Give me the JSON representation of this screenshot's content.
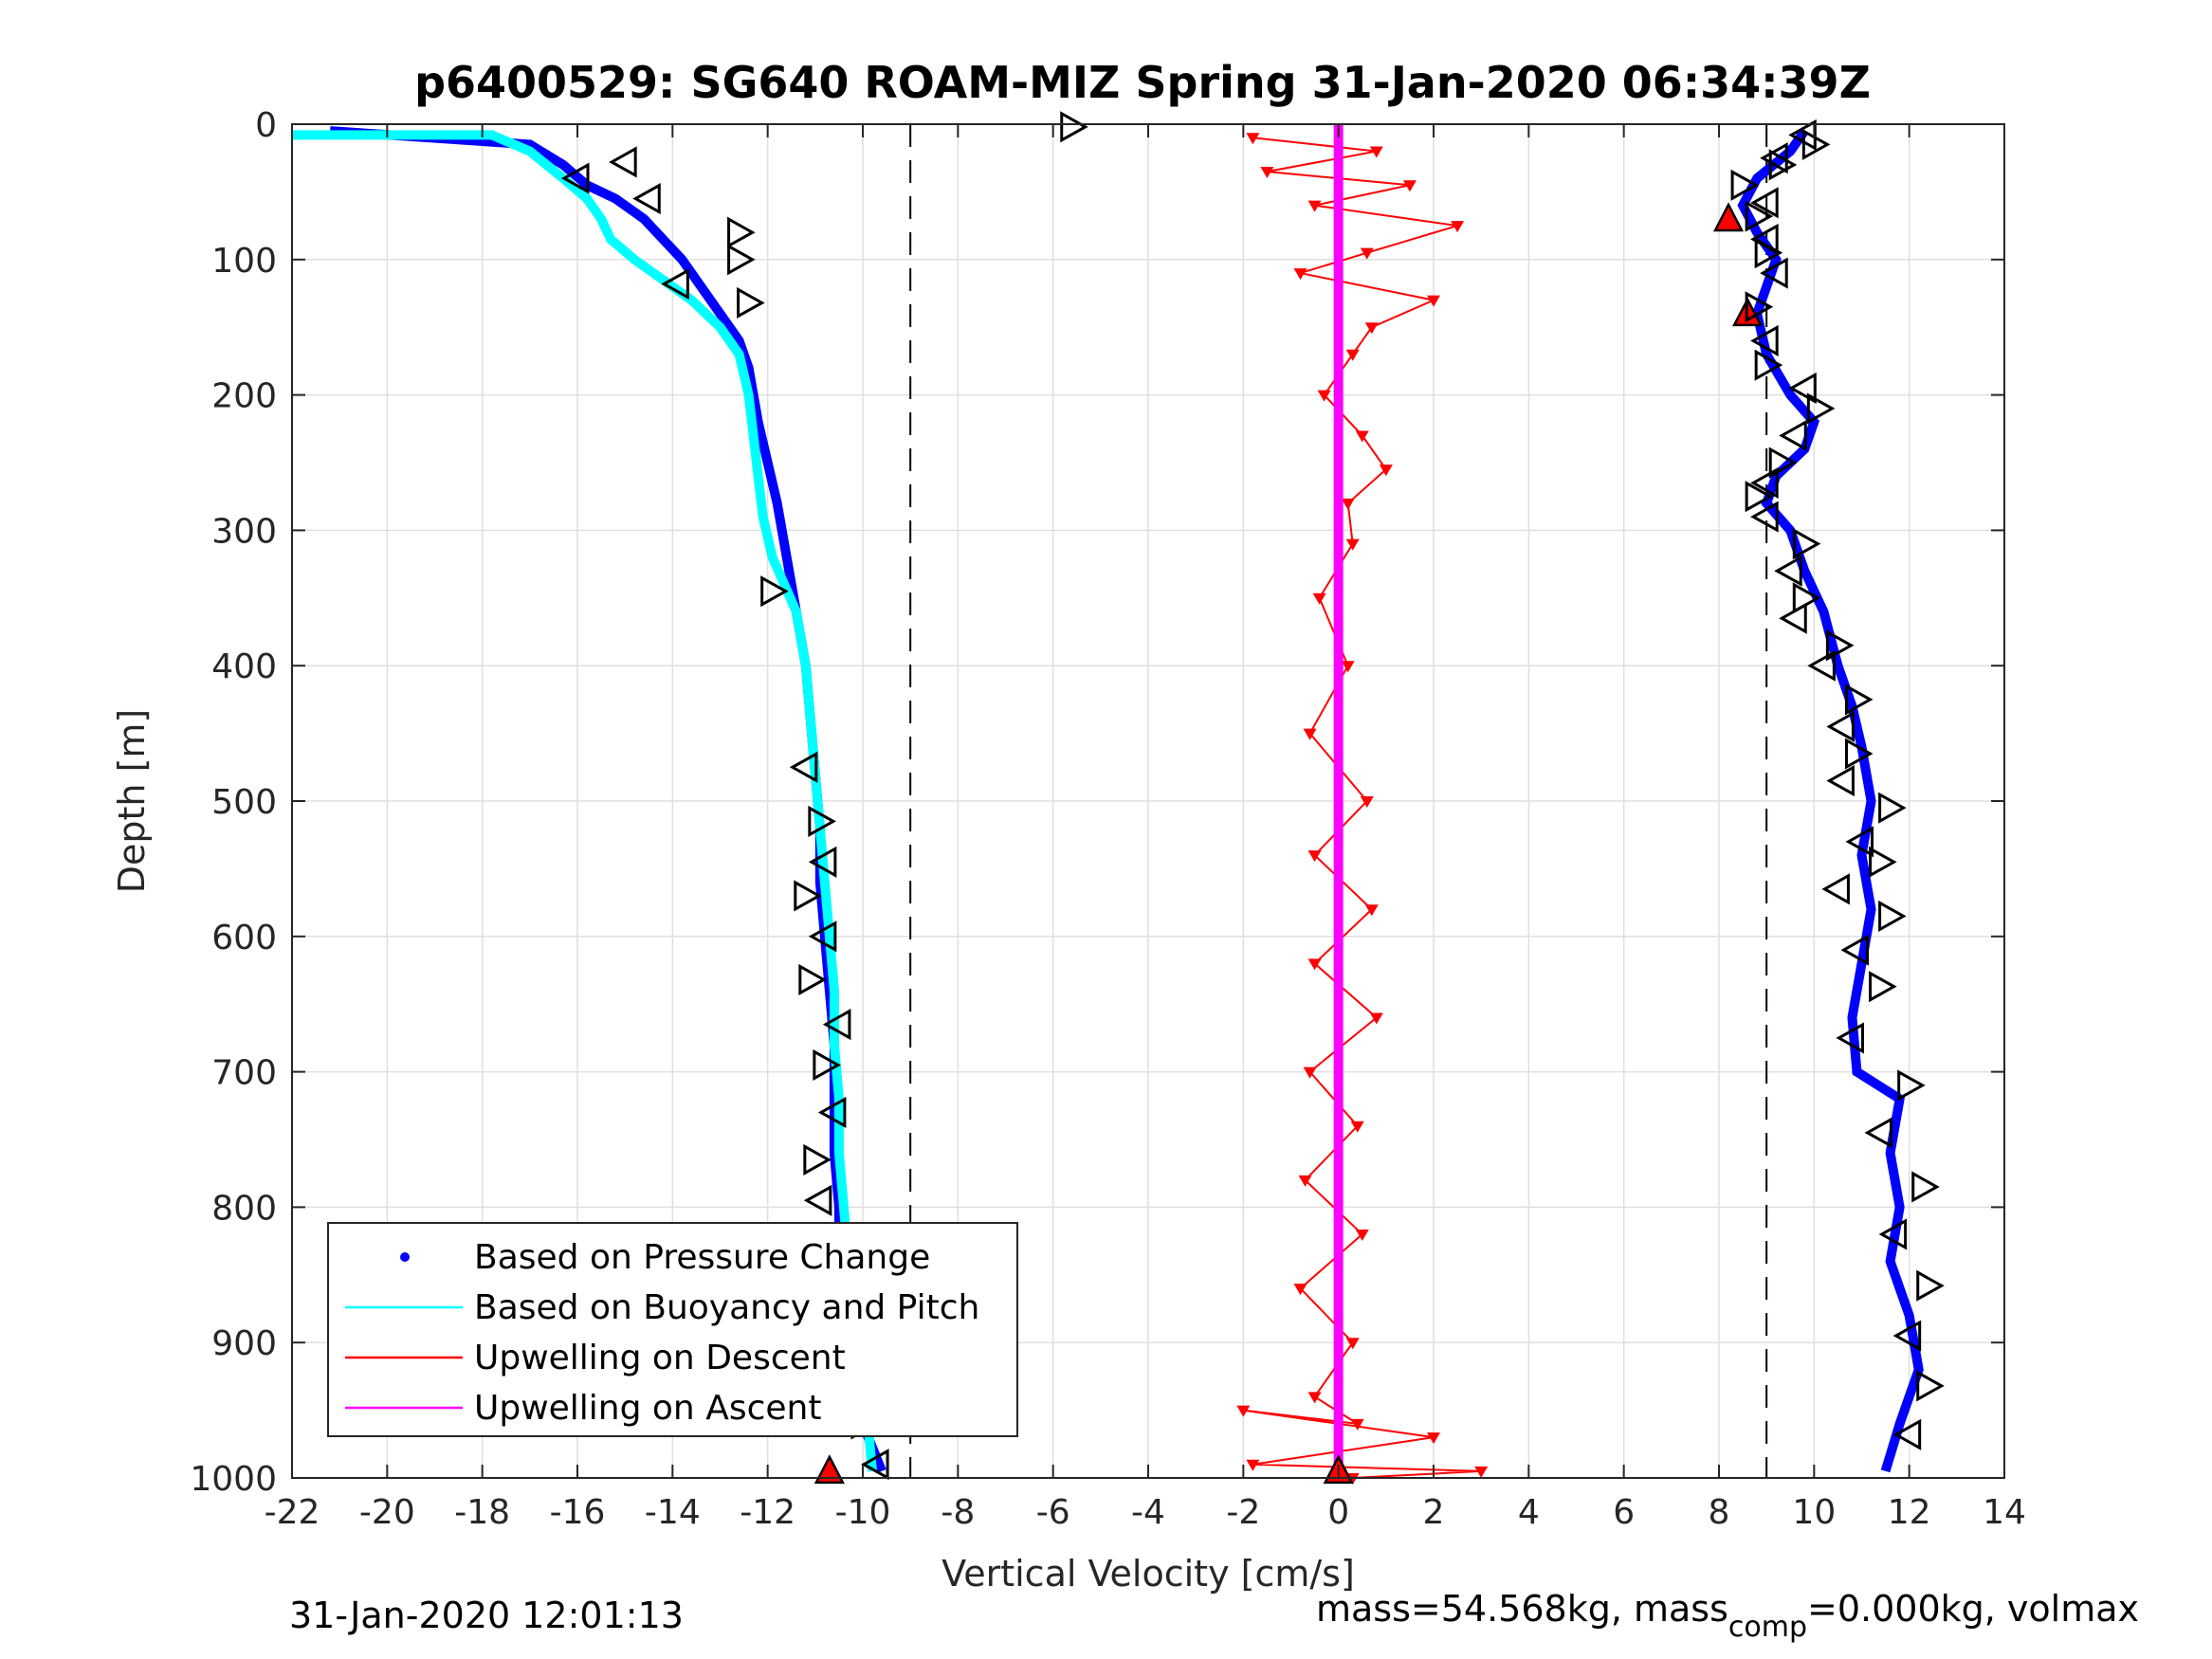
{
  "chart_data": {
    "type": "scatter",
    "title": "p6400529: SG640 ROAM-MIZ Spring 31-Jan-2020 06:34:39Z",
    "xlabel": "Vertical Velocity [cm/s]",
    "ylabel": "Depth [m]",
    "xlim": [
      -22,
      14
    ],
    "ylim": [
      1000,
      0
    ],
    "y_reversed": true,
    "grid": true,
    "xticks": [
      "-22",
      "-20",
      "-18",
      "-16",
      "-14",
      "-12",
      "-10",
      "-8",
      "-6",
      "-4",
      "-2",
      "0",
      "2",
      "4",
      "6",
      "8",
      "10",
      "12",
      "14"
    ],
    "yticks": [
      "0",
      "100",
      "200",
      "300",
      "400",
      "500",
      "600",
      "700",
      "800",
      "900",
      "1000"
    ],
    "reference_lines": [
      -9,
      9
    ],
    "legend": {
      "placement": "bottom-left",
      "entries": [
        {
          "label": "Based on Pressure Change",
          "color": "#0000ff",
          "marker": "dot"
        },
        {
          "label": "Based on Buoyancy and Pitch",
          "color": "#00ffff",
          "marker": "line"
        },
        {
          "label": "Upwelling on Descent",
          "color": "#ff0000",
          "marker": "line"
        },
        {
          "label": "Upwelling on Ascent",
          "color": "#ff00ff",
          "marker": "line"
        }
      ]
    },
    "series": [
      {
        "name": "Based on Pressure Change (descent)",
        "color": "#0000ff",
        "x": [
          -21.2,
          -17,
          -16.3,
          -15.8,
          -15.2,
          -14.6,
          -14.2,
          -13.8,
          -13.4,
          -13.0,
          -12.6,
          -12.4,
          -12.3,
          -12.2,
          -12.0,
          -11.8,
          -11.6,
          -11.4,
          -11.2,
          -11.1,
          -11.0,
          -10.9,
          -10.9,
          -10.8,
          -10.7,
          -10.6,
          -10.6,
          -10.6,
          -10.5,
          -10.5,
          -10.4,
          -10.2,
          -10.0,
          -9.6
        ],
        "y": [
          5,
          15,
          30,
          45,
          55,
          70,
          85,
          100,
          120,
          140,
          160,
          180,
          200,
          220,
          250,
          280,
          320,
          360,
          400,
          440,
          480,
          520,
          560,
          600,
          640,
          680,
          720,
          760,
          800,
          840,
          880,
          920,
          960,
          995
        ]
      },
      {
        "name": "Based on Pressure Change (ascent)",
        "color": "#0000ff",
        "x": [
          9.8,
          9.5,
          8.8,
          8.5,
          8.8,
          9.2,
          9.0,
          8.8,
          9.0,
          9.5,
          10.0,
          9.8,
          9.2,
          9.0,
          9.5,
          9.8,
          10.2,
          10.5,
          10.8,
          11.0,
          11.2,
          11.0,
          11.2,
          11.0,
          10.8,
          10.9,
          11.8,
          11.6,
          11.8,
          11.6,
          12.0,
          12.2,
          11.8,
          11.5
        ],
        "y": [
          5,
          20,
          40,
          60,
          80,
          100,
          120,
          140,
          170,
          200,
          220,
          240,
          260,
          280,
          300,
          330,
          360,
          400,
          430,
          460,
          500,
          540,
          580,
          620,
          660,
          700,
          720,
          760,
          800,
          840,
          880,
          920,
          960,
          995
        ]
      },
      {
        "name": "Based on Buoyancy and Pitch",
        "color": "#00ffff",
        "x": [
          -22,
          -17.8,
          -17.0,
          -16.3,
          -15.8,
          -15.5,
          -15.3,
          -14.8,
          -14.2,
          -13.6,
          -13.0,
          -12.6,
          -12.4,
          -12.3,
          -12.2,
          -12.1,
          -11.9,
          -11.4,
          -11.2,
          -11.1,
          -11.0,
          -10.9,
          -10.8,
          -10.7,
          -10.6,
          -10.6,
          -10.5,
          -10.5,
          -10.4,
          -10.3,
          -10.2,
          -10.0,
          -9.8
        ],
        "y": [
          8,
          8,
          20,
          40,
          55,
          70,
          85,
          100,
          115,
          130,
          150,
          170,
          200,
          230,
          260,
          290,
          320,
          360,
          400,
          440,
          480,
          520,
          560,
          600,
          640,
          680,
          720,
          760,
          800,
          840,
          880,
          920,
          995
        ]
      },
      {
        "name": "Upwelling on Descent",
        "color": "#ff0000",
        "x": [
          -1.8,
          0.8,
          -1.5,
          1.5,
          -0.5,
          2.5,
          0.6,
          -0.8,
          2.0,
          0.7,
          0.3,
          -0.3,
          0.5,
          1.0,
          0.2,
          0.3,
          -0.4,
          0.2,
          -0.6,
          0.6,
          -0.5,
          0.7,
          -0.5,
          0.8,
          -0.6,
          0.4,
          -0.7,
          0.5,
          -0.8,
          0.3,
          -0.5,
          0.4,
          -2.0,
          2.0,
          -1.8,
          3.0,
          0.3
        ],
        "y": [
          10,
          20,
          35,
          45,
          60,
          75,
          95,
          110,
          130,
          150,
          170,
          200,
          230,
          255,
          280,
          310,
          350,
          400,
          450,
          500,
          540,
          580,
          620,
          660,
          700,
          740,
          780,
          820,
          860,
          900,
          940,
          960,
          950,
          970,
          990,
          995,
          1000
        ]
      },
      {
        "name": "Upwelling on Ascent",
        "color": "#ff00ff",
        "x": [
          0,
          0,
          0
        ],
        "y": [
          0,
          500,
          1000
        ]
      }
    ],
    "markers": [
      {
        "kind": "triangle-up-red",
        "x": -10.7,
        "y": 995
      },
      {
        "kind": "triangle-up-red",
        "x": 0.0,
        "y": 995
      },
      {
        "kind": "triangle-up-red",
        "x": 8.2,
        "y": 70
      },
      {
        "kind": "triangle-up-red",
        "x": 8.6,
        "y": 140
      },
      {
        "kind": "triangle-right-open",
        "x": -5.6,
        "y": 2
      },
      {
        "kind": "triangle-left-open",
        "x": -16.0,
        "y": 40
      },
      {
        "kind": "triangle-left-open",
        "x": -15.0,
        "y": 28
      },
      {
        "kind": "triangle-left-open",
        "x": -14.5,
        "y": 55
      },
      {
        "kind": "triangle-right-open",
        "x": -12.6,
        "y": 80
      },
      {
        "kind": "triangle-right-open",
        "x": -12.6,
        "y": 100
      },
      {
        "kind": "triangle-left-open",
        "x": -13.9,
        "y": 118
      },
      {
        "kind": "triangle-right-open",
        "x": -12.4,
        "y": 132
      },
      {
        "kind": "triangle-right-open",
        "x": -11.9,
        "y": 345
      },
      {
        "kind": "triangle-left-open",
        "x": -11.2,
        "y": 475
      },
      {
        "kind": "triangle-right-open",
        "x": -10.9,
        "y": 515
      },
      {
        "kind": "triangle-left-open",
        "x": -10.8,
        "y": 545
      },
      {
        "kind": "triangle-right-open",
        "x": -11.2,
        "y": 570
      },
      {
        "kind": "triangle-left-open",
        "x": -10.8,
        "y": 600
      },
      {
        "kind": "triangle-right-open",
        "x": -11.1,
        "y": 632
      },
      {
        "kind": "triangle-left-open",
        "x": -10.5,
        "y": 665
      },
      {
        "kind": "triangle-right-open",
        "x": -10.8,
        "y": 695
      },
      {
        "kind": "triangle-left-open",
        "x": -10.6,
        "y": 730
      },
      {
        "kind": "triangle-right-open",
        "x": -11.0,
        "y": 765
      },
      {
        "kind": "triangle-left-open",
        "x": -10.9,
        "y": 795
      },
      {
        "kind": "triangle-right-open",
        "x": -11.1,
        "y": 830
      },
      {
        "kind": "triangle-left-open",
        "x": -10.4,
        "y": 860
      },
      {
        "kind": "triangle-right-open",
        "x": -10.8,
        "y": 895
      },
      {
        "kind": "triangle-left-open",
        "x": -10.5,
        "y": 925
      },
      {
        "kind": "triangle-right-open",
        "x": -10.0,
        "y": 960
      },
      {
        "kind": "triangle-left-open",
        "x": -9.7,
        "y": 990
      },
      {
        "kind": "triangle-left-open",
        "x": 9.8,
        "y": 8
      },
      {
        "kind": "triangle-right-open",
        "x": 10.0,
        "y": 15
      },
      {
        "kind": "triangle-left-open",
        "x": 9.2,
        "y": 25
      },
      {
        "kind": "triangle-right-open",
        "x": 9.3,
        "y": 30
      },
      {
        "kind": "triangle-right-open",
        "x": 8.5,
        "y": 45
      },
      {
        "kind": "triangle-left-open",
        "x": 9.0,
        "y": 58
      },
      {
        "kind": "triangle-right-open",
        "x": 8.8,
        "y": 68
      },
      {
        "kind": "triangle-left-open",
        "x": 9.0,
        "y": 85
      },
      {
        "kind": "triangle-right-open",
        "x": 9.0,
        "y": 95
      },
      {
        "kind": "triangle-left-open",
        "x": 9.2,
        "y": 110
      },
      {
        "kind": "triangle-right-open",
        "x": 8.8,
        "y": 135
      },
      {
        "kind": "triangle-left-open",
        "x": 9.0,
        "y": 160
      },
      {
        "kind": "triangle-right-open",
        "x": 9.0,
        "y": 178
      },
      {
        "kind": "triangle-left-open",
        "x": 9.8,
        "y": 195
      },
      {
        "kind": "triangle-right-open",
        "x": 10.1,
        "y": 210
      },
      {
        "kind": "triangle-left-open",
        "x": 9.6,
        "y": 230
      },
      {
        "kind": "triangle-right-open",
        "x": 9.3,
        "y": 250
      },
      {
        "kind": "triangle-left-open",
        "x": 9.0,
        "y": 265
      },
      {
        "kind": "triangle-right-open",
        "x": 8.8,
        "y": 275
      },
      {
        "kind": "triangle-left-open",
        "x": 9.0,
        "y": 290
      },
      {
        "kind": "triangle-right-open",
        "x": 9.8,
        "y": 310
      },
      {
        "kind": "triangle-left-open",
        "x": 9.5,
        "y": 330
      },
      {
        "kind": "triangle-right-open",
        "x": 9.8,
        "y": 350
      },
      {
        "kind": "triangle-left-open",
        "x": 9.6,
        "y": 365
      },
      {
        "kind": "triangle-right-open",
        "x": 10.5,
        "y": 385
      },
      {
        "kind": "triangle-left-open",
        "x": 10.2,
        "y": 400
      },
      {
        "kind": "triangle-right-open",
        "x": 10.9,
        "y": 425
      },
      {
        "kind": "triangle-left-open",
        "x": 10.6,
        "y": 445
      },
      {
        "kind": "triangle-right-open",
        "x": 10.9,
        "y": 465
      },
      {
        "kind": "triangle-left-open",
        "x": 10.6,
        "y": 485
      },
      {
        "kind": "triangle-right-open",
        "x": 11.6,
        "y": 505
      },
      {
        "kind": "triangle-left-open",
        "x": 11.0,
        "y": 530
      },
      {
        "kind": "triangle-right-open",
        "x": 11.4,
        "y": 545
      },
      {
        "kind": "triangle-left-open",
        "x": 10.5,
        "y": 565
      },
      {
        "kind": "triangle-right-open",
        "x": 11.6,
        "y": 585
      },
      {
        "kind": "triangle-left-open",
        "x": 10.9,
        "y": 610
      },
      {
        "kind": "triangle-right-open",
        "x": 11.4,
        "y": 637
      },
      {
        "kind": "triangle-left-open",
        "x": 10.8,
        "y": 675
      },
      {
        "kind": "triangle-right-open",
        "x": 12.0,
        "y": 710
      },
      {
        "kind": "triangle-left-open",
        "x": 11.4,
        "y": 745
      },
      {
        "kind": "triangle-right-open",
        "x": 12.3,
        "y": 785
      },
      {
        "kind": "triangle-left-open",
        "x": 11.7,
        "y": 820
      },
      {
        "kind": "triangle-right-open",
        "x": 12.4,
        "y": 858
      },
      {
        "kind": "triangle-left-open",
        "x": 12.0,
        "y": 895
      },
      {
        "kind": "triangle-right-open",
        "x": 12.4,
        "y": 932
      },
      {
        "kind": "triangle-left-open",
        "x": 12.0,
        "y": 968
      }
    ]
  },
  "footer": {
    "left": "31-Jan-2020 12:01:13",
    "right_main": "mass=54.568kg, mass",
    "right_sub": "comp",
    "right_tail": "=0.000kg, volmax"
  }
}
